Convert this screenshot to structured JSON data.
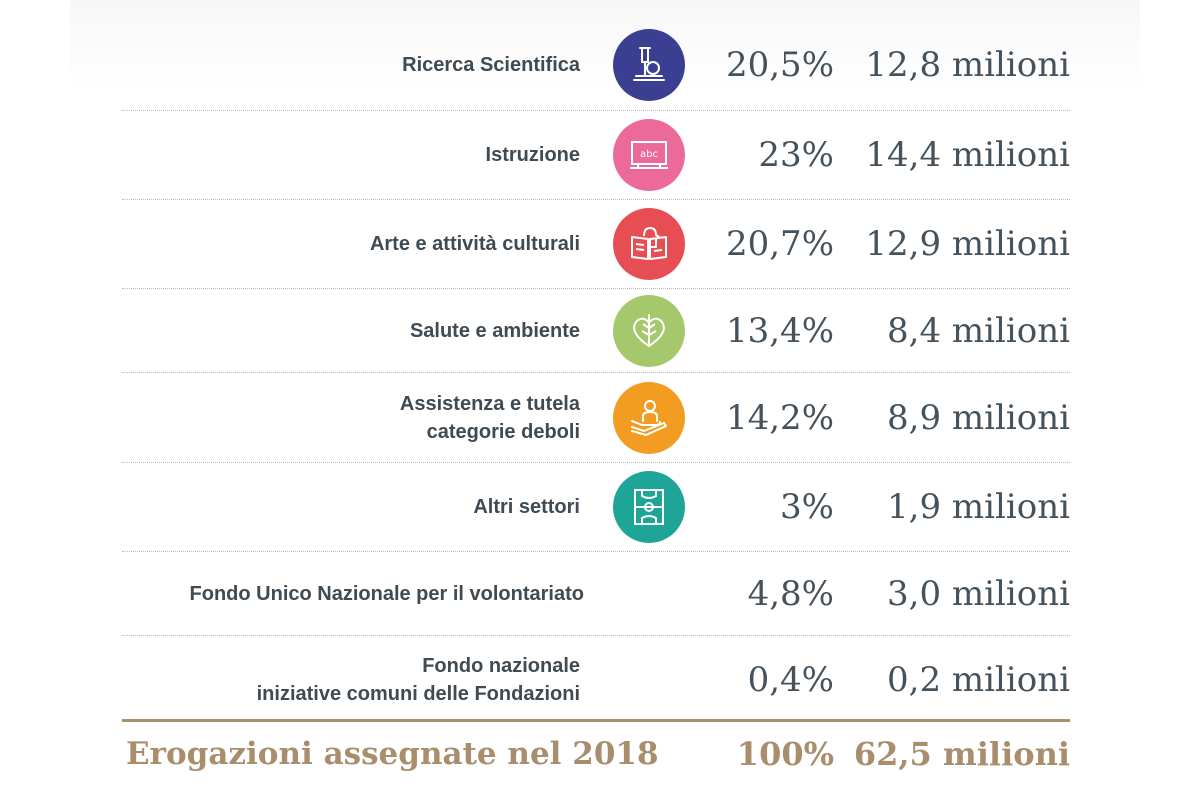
{
  "rows": [
    {
      "label": "Ricerca Scientifica",
      "label2": "",
      "percent": "20,5%",
      "amount": "12,8 milioni",
      "icon": "microscope-icon",
      "color": "#3b3f91"
    },
    {
      "label": "Istruzione",
      "label2": "",
      "percent": "23%",
      "amount": "14,4 milioni",
      "icon": "blackboard-icon",
      "color": "#ec6a9a"
    },
    {
      "label": "Arte e attività culturali",
      "label2": "",
      "percent": "20,7%",
      "amount": "12,9 milioni",
      "icon": "book-icon",
      "color": "#e74e54"
    },
    {
      "label": "Salute e ambiente",
      "label2": "",
      "percent": "13,4%",
      "amount": "8,4 milioni",
      "icon": "leaf-heart-icon",
      "color": "#a6c86c"
    },
    {
      "label": "Assistenza e tutela",
      "label2": "categorie deboli",
      "percent": "14,2%",
      "amount": "8,9 milioni",
      "icon": "care-hand-icon",
      "color": "#f29d22"
    },
    {
      "label": "Altri settori",
      "label2": "",
      "percent": "3%",
      "amount": "1,9 milioni",
      "icon": "sports-field-icon",
      "color": "#1fa597"
    },
    {
      "label": "Fondo Unico Nazionale per il volontariato",
      "label2": "",
      "percent": "4,8%",
      "amount": "3,0 milioni",
      "icon": "",
      "color": ""
    },
    {
      "label": "Fondo nazionale",
      "label2": "iniziative comuni delle Fondazioni",
      "percent": "0,4%",
      "amount": "0,2 milioni",
      "icon": "",
      "color": ""
    }
  ],
  "total": {
    "label": "Erogazioni assegnate nel 2018",
    "percent": "100%",
    "amount": "62,5 milioni"
  },
  "colors": {
    "text": "#3f4a52",
    "accent": "#a98e6e",
    "divider": "#b9b9b9"
  }
}
